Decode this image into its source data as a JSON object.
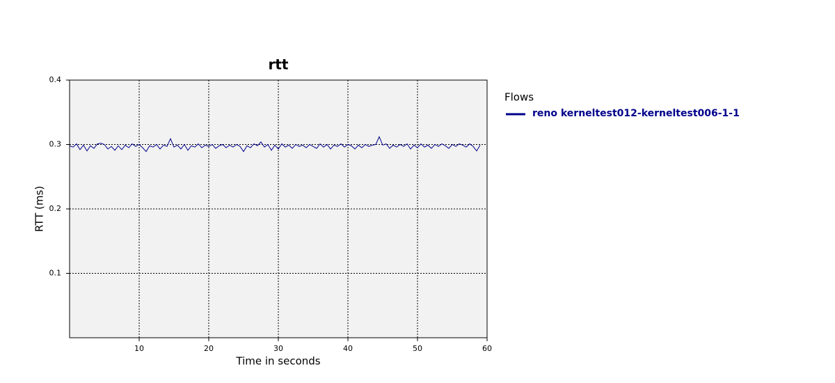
{
  "chart_data": {
    "type": "line",
    "title": "rtt",
    "xlabel": "Time in seconds",
    "ylabel": "RTT (ms)",
    "legend_title": "Flows",
    "legend_position": "right",
    "xlim": [
      0,
      60
    ],
    "xticks": [
      10,
      20,
      30,
      40,
      50,
      60
    ],
    "ylim": [
      0,
      0.4
    ],
    "yticks": [
      0.1,
      0.2,
      0.3,
      0.4
    ],
    "grid": true,
    "x": [
      0,
      0.5,
      1,
      1.5,
      2,
      2.5,
      3,
      3.5,
      4,
      4.5,
      5,
      5.5,
      6,
      6.5,
      7,
      7.5,
      8,
      8.5,
      9,
      9.5,
      10,
      10.5,
      11,
      11.5,
      12,
      12.5,
      13,
      13.5,
      14,
      14.5,
      15,
      15.5,
      16,
      16.5,
      17,
      17.5,
      18,
      18.5,
      19,
      19.5,
      20,
      20.5,
      21,
      21.5,
      22,
      22.5,
      23,
      23.5,
      24,
      24.5,
      25,
      25.5,
      26,
      26.5,
      27,
      27.5,
      28,
      28.5,
      29,
      29.5,
      30,
      30.5,
      31,
      31.5,
      32,
      32.5,
      33,
      33.5,
      34,
      34.5,
      35,
      35.5,
      36,
      36.5,
      37,
      37.5,
      38,
      38.5,
      39,
      39.5,
      40,
      40.5,
      41,
      41.5,
      42,
      42.5,
      43,
      43.5,
      44,
      44.5,
      45,
      45.5,
      46,
      46.5,
      47,
      47.5,
      48,
      48.5,
      49,
      49.5,
      50,
      50.5,
      51,
      51.5,
      52,
      52.5,
      53,
      53.5,
      54,
      54.5,
      55,
      55.5,
      56,
      56.5,
      57,
      57.5,
      58,
      58.5,
      59
    ],
    "series": [
      {
        "name": "reno kerneltest012-kerneltest006-1-1",
        "color": "#00008b",
        "values": [
          0.298,
          0.296,
          0.301,
          0.292,
          0.299,
          0.29,
          0.298,
          0.294,
          0.301,
          0.302,
          0.3,
          0.293,
          0.297,
          0.291,
          0.298,
          0.292,
          0.299,
          0.295,
          0.301,
          0.297,
          0.3,
          0.295,
          0.289,
          0.298,
          0.296,
          0.3,
          0.293,
          0.299,
          0.297,
          0.309,
          0.296,
          0.299,
          0.293,
          0.3,
          0.291,
          0.298,
          0.296,
          0.301,
          0.295,
          0.299,
          0.297,
          0.3,
          0.294,
          0.298,
          0.3,
          0.295,
          0.299,
          0.296,
          0.3,
          0.297,
          0.289,
          0.298,
          0.295,
          0.301,
          0.298,
          0.304,
          0.296,
          0.3,
          0.291,
          0.299,
          0.293,
          0.301,
          0.296,
          0.299,
          0.294,
          0.3,
          0.297,
          0.299,
          0.295,
          0.3,
          0.297,
          0.294,
          0.301,
          0.296,
          0.3,
          0.293,
          0.299,
          0.297,
          0.301,
          0.296,
          0.3,
          0.298,
          0.293,
          0.299,
          0.295,
          0.3,
          0.297,
          0.299,
          0.3,
          0.312,
          0.299,
          0.301,
          0.294,
          0.299,
          0.296,
          0.3,
          0.297,
          0.301,
          0.293,
          0.299,
          0.295,
          0.301,
          0.296,
          0.299,
          0.294,
          0.3,
          0.297,
          0.301,
          0.298,
          0.294,
          0.3,
          0.297,
          0.301,
          0.299,
          0.296,
          0.301,
          0.297,
          0.29,
          0.299
        ]
      }
    ]
  }
}
